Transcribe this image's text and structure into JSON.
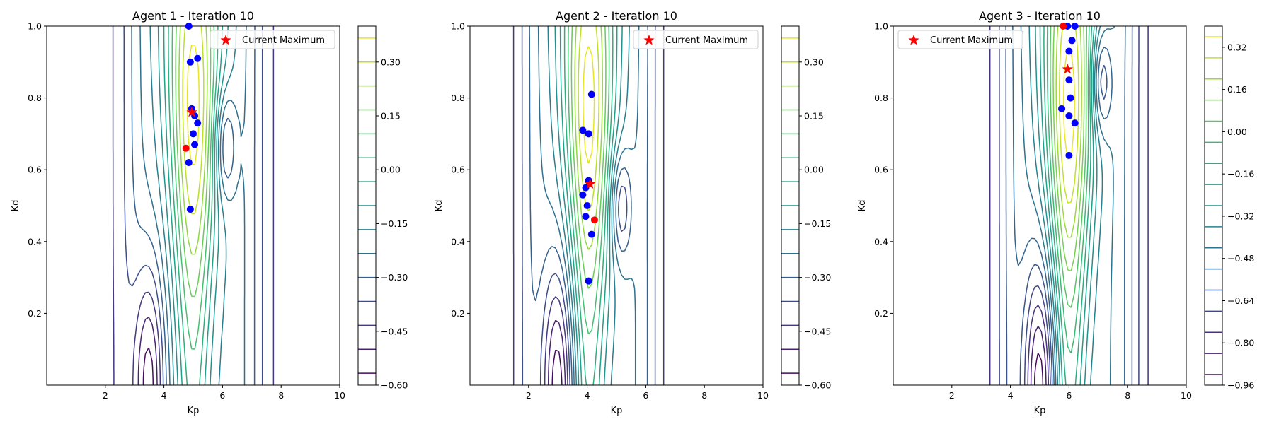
{
  "chart_data": [
    {
      "type": "contour",
      "title": "Agent 1 - Iteration 10",
      "xlabel": "Kp",
      "ylabel": "Kd",
      "xlim": [
        0,
        10
      ],
      "ylim": [
        0,
        1
      ],
      "xticks": [
        "2",
        "4",
        "6",
        "8",
        "10"
      ],
      "yticks": [
        "0.2",
        "0.4",
        "0.6",
        "0.8",
        "1.0"
      ],
      "colorbar": {
        "min": -0.6,
        "max": 0.4,
        "levels": 15,
        "ticks": [
          0.3,
          0.15,
          0.0,
          -0.15,
          -0.3,
          -0.45,
          -0.6
        ],
        "tick_labels": [
          "0.30",
          "0.15",
          "0.00",
          "−0.15",
          "−0.30",
          "−0.45",
          "−0.60"
        ]
      },
      "surface": {
        "peak_kp": 5.0,
        "valley_kp": 3.5,
        "dip_kd": 0.67
      },
      "legend": {
        "label": "Current Maximum",
        "position": "upper right"
      },
      "points": [
        {
          "x": 4.85,
          "y": 1.0
        },
        {
          "x": 4.9,
          "y": 0.9
        },
        {
          "x": 5.15,
          "y": 0.91
        },
        {
          "x": 4.95,
          "y": 0.77
        },
        {
          "x": 5.05,
          "y": 0.75
        },
        {
          "x": 5.15,
          "y": 0.73
        },
        {
          "x": 5.0,
          "y": 0.7
        },
        {
          "x": 5.05,
          "y": 0.67
        },
        {
          "x": 4.85,
          "y": 0.62
        },
        {
          "x": 4.9,
          "y": 0.49
        }
      ],
      "new_point": {
        "x": 4.75,
        "y": 0.66
      },
      "maximum": {
        "x": 4.95,
        "y": 0.76
      }
    },
    {
      "type": "contour",
      "title": "Agent 2 - Iteration 10",
      "xlabel": "Kp",
      "ylabel": "Kd",
      "xlim": [
        0,
        10
      ],
      "ylim": [
        0,
        1
      ],
      "xticks": [
        "2",
        "4",
        "6",
        "8",
        "10"
      ],
      "yticks": [
        "0.2",
        "0.4",
        "0.6",
        "0.8",
        "1.0"
      ],
      "colorbar": {
        "min": -0.6,
        "max": 0.4,
        "levels": 15,
        "ticks": [
          0.3,
          0.15,
          0.0,
          -0.15,
          -0.3,
          -0.45,
          -0.6
        ],
        "tick_labels": [
          "0.30",
          "0.15",
          "0.00",
          "−0.15",
          "−0.30",
          "−0.45",
          "−0.60"
        ]
      },
      "surface": {
        "peak_kp": 4.05,
        "valley_kp": 3.0,
        "dip_kd": 0.5
      },
      "legend": {
        "label": "Current Maximum",
        "position": "upper right"
      },
      "points": [
        {
          "x": 4.15,
          "y": 0.81
        },
        {
          "x": 3.85,
          "y": 0.71
        },
        {
          "x": 4.05,
          "y": 0.7
        },
        {
          "x": 4.05,
          "y": 0.57
        },
        {
          "x": 3.95,
          "y": 0.55
        },
        {
          "x": 3.85,
          "y": 0.53
        },
        {
          "x": 4.0,
          "y": 0.5
        },
        {
          "x": 3.95,
          "y": 0.47
        },
        {
          "x": 4.15,
          "y": 0.42
        },
        {
          "x": 4.05,
          "y": 0.29
        }
      ],
      "new_point": {
        "x": 4.25,
        "y": 0.46
      },
      "maximum": {
        "x": 4.1,
        "y": 0.56
      }
    },
    {
      "type": "contour",
      "title": "Agent 3 - Iteration 10",
      "xlabel": "Kp",
      "ylabel": "Kd",
      "xlim": [
        0,
        10
      ],
      "ylim": [
        0,
        1
      ],
      "xticks": [
        "2",
        "4",
        "6",
        "8",
        "10"
      ],
      "yticks": [
        "0.2",
        "0.4",
        "0.6",
        "0.8",
        "1.0"
      ],
      "colorbar": {
        "min": -0.96,
        "max": 0.4,
        "levels": 17,
        "ticks": [
          0.32,
          0.16,
          0.0,
          -0.16,
          -0.32,
          -0.48,
          -0.64,
          -0.8,
          -0.96
        ],
        "tick_labels": [
          "0.32",
          "0.16",
          "0.00",
          "−0.16",
          "−0.32",
          "−0.48",
          "−0.64",
          "−0.80",
          "−0.96"
        ]
      },
      "surface": {
        "peak_kp": 6.0,
        "valley_kp": 5.0,
        "dip_kd": 0.85
      },
      "legend": {
        "label": "Current Maximum",
        "position": "upper left"
      },
      "points": [
        {
          "x": 5.95,
          "y": 1.0
        },
        {
          "x": 6.2,
          "y": 1.0
        },
        {
          "x": 6.1,
          "y": 0.96
        },
        {
          "x": 6.0,
          "y": 0.93
        },
        {
          "x": 6.0,
          "y": 0.85
        },
        {
          "x": 6.05,
          "y": 0.8
        },
        {
          "x": 5.75,
          "y": 0.77
        },
        {
          "x": 6.0,
          "y": 0.75
        },
        {
          "x": 6.2,
          "y": 0.73
        },
        {
          "x": 6.0,
          "y": 0.64
        }
      ],
      "new_point": {
        "x": 5.8,
        "y": 1.0
      },
      "maximum": {
        "x": 5.95,
        "y": 0.88
      }
    }
  ],
  "colors": {
    "observed_point": "#0000ff",
    "new_point": "#ff0000",
    "maximum_marker": "#ff0000",
    "colormap": "viridis"
  }
}
